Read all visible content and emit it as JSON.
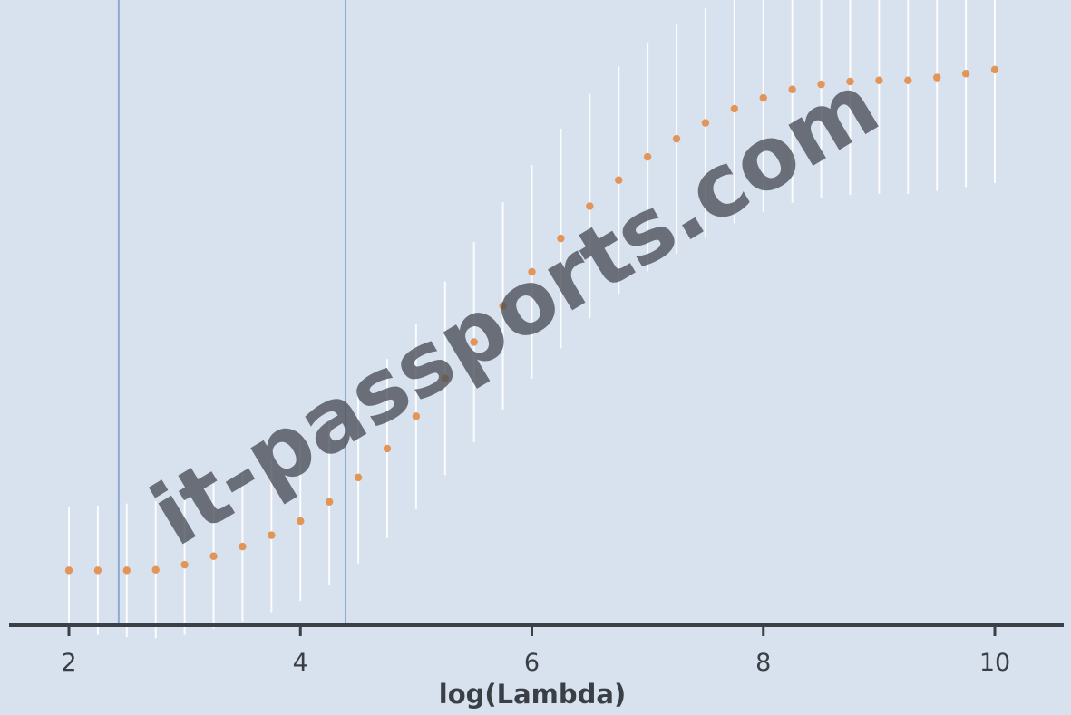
{
  "watermark": "it-passports.com",
  "chart_data": {
    "type": "line",
    "xlabel": "log(Lambda)",
    "ylabel": "",
    "x_ticks": [
      2,
      4,
      6,
      8,
      10
    ],
    "xlim": [
      2,
      10
    ],
    "ylim": [
      0,
      1
    ],
    "grid": false,
    "vertical_lines": [
      2.43,
      4.39
    ],
    "series": [
      {
        "x": [
          2.0,
          2.25,
          2.5,
          2.75,
          3.0,
          3.25,
          3.5,
          3.75,
          4.0,
          4.25,
          4.5,
          4.75,
          5.0,
          5.25,
          5.5,
          5.75,
          6.0,
          6.25,
          6.5,
          6.75,
          7.0,
          7.25,
          7.5,
          7.75,
          8.0,
          8.25,
          8.5,
          8.75,
          9.0,
          9.25,
          9.5,
          9.75,
          10.0
        ],
        "y": [
          0.041,
          0.041,
          0.041,
          0.042,
          0.051,
          0.066,
          0.083,
          0.103,
          0.128,
          0.162,
          0.205,
          0.256,
          0.313,
          0.38,
          0.444,
          0.508,
          0.568,
          0.627,
          0.684,
          0.73,
          0.771,
          0.803,
          0.831,
          0.856,
          0.875,
          0.89,
          0.899,
          0.904,
          0.906,
          0.906,
          0.911,
          0.918,
          0.925
        ],
        "error_half_width": [
          0.112,
          0.114,
          0.118,
          0.121,
          0.124,
          0.128,
          0.132,
          0.136,
          0.141,
          0.146,
          0.152,
          0.158,
          0.164,
          0.171,
          0.177,
          0.183,
          0.189,
          0.194,
          0.198,
          0.201,
          0.202,
          0.203,
          0.203,
          0.202,
          0.201,
          0.2,
          0.2,
          0.2,
          0.2,
          0.2,
          0.2,
          0.2,
          0.2
        ]
      }
    ],
    "colors": {
      "point": "#e39558",
      "error_bar": "#ffffff",
      "reference_line": "#8ea9d3",
      "axis": "#3b4047",
      "background": "#d8e1ee"
    }
  }
}
